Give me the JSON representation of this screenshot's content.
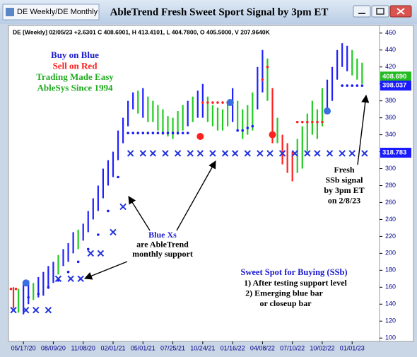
{
  "window": {
    "tab": "DE Weekly/DE Monthly"
  },
  "chart_data": {
    "type": "ohlc",
    "title": "AbleTrend Fresh Sweet Sport Signal by 3pm ET",
    "info": "DE [Weekly] 02/05/23 +2.6301 C 408.6901, H 413.4101, L 404.7800, O 405.5000, V 207.9640K",
    "xlim": [
      -6,
      143
    ],
    "xticks": [
      {
        "value": 0,
        "label": "05/17/20"
      },
      {
        "value": 12,
        "label": "08/09/20"
      },
      {
        "value": 24,
        "label": "11/08/20"
      },
      {
        "value": 36,
        "label": "02/01/21"
      },
      {
        "value": 48,
        "label": "05/01/21"
      },
      {
        "value": 60,
        "label": "07/25/21"
      },
      {
        "value": 72,
        "label": "10/24/21"
      },
      {
        "value": 84,
        "label": "01/16/22"
      },
      {
        "value": 96,
        "label": "04/08/22"
      },
      {
        "value": 108,
        "label": "07/10/22"
      },
      {
        "value": 120,
        "label": "10/02/22"
      },
      {
        "value": 132,
        "label": "01/01/23"
      }
    ],
    "ylim": [
      96,
      469
    ],
    "yticks": [
      100,
      120,
      140,
      160,
      180,
      200,
      220,
      240,
      260,
      280,
      300,
      320,
      340,
      360,
      380,
      400,
      420,
      440,
      460
    ],
    "bars": {
      "x": [
        -4,
        -2,
        0,
        2,
        4,
        6,
        8,
        10,
        12,
        14,
        16,
        18,
        20,
        22,
        24,
        26,
        28,
        30,
        32,
        34,
        36,
        38,
        40,
        42,
        44,
        46,
        48,
        50,
        52,
        54,
        56,
        58,
        60,
        62,
        64,
        66,
        68,
        70,
        72,
        74,
        76,
        78,
        80,
        82,
        84,
        86,
        88,
        90,
        92,
        94,
        96,
        98,
        100,
        102,
        104,
        106,
        108,
        110,
        112,
        114,
        116,
        118,
        120,
        122,
        124,
        126,
        128,
        130,
        132,
        134,
        136
      ],
      "low": [
        135,
        130,
        128,
        140,
        145,
        148,
        150,
        158,
        165,
        175,
        185,
        190,
        200,
        205,
        215,
        225,
        240,
        250,
        265,
        280,
        290,
        310,
        330,
        350,
        370,
        365,
        360,
        355,
        355,
        345,
        340,
        338,
        335,
        340,
        345,
        350,
        355,
        360,
        360,
        355,
        350,
        345,
        345,
        350,
        355,
        345,
        335,
        340,
        345,
        370,
        390,
        380,
        330,
        330,
        305,
        295,
        285,
        295,
        300,
        320,
        340,
        335,
        350,
        365,
        380,
        405,
        420,
        415,
        410,
        405,
        400
      ],
      "high": [
        160,
        158,
        165,
        168,
        165,
        172,
        178,
        185,
        190,
        198,
        205,
        212,
        225,
        228,
        235,
        250,
        265,
        280,
        300,
        310,
        320,
        345,
        360,
        380,
        390,
        392,
        395,
        385,
        380,
        375,
        370,
        362,
        360,
        368,
        375,
        380,
        385,
        392,
        400,
        385,
        375,
        372,
        370,
        380,
        395,
        380,
        370,
        375,
        390,
        420,
        440,
        430,
        395,
        360,
        340,
        330,
        320,
        335,
        350,
        365,
        380,
        370,
        395,
        405,
        420,
        440,
        448,
        445,
        440,
        430,
        425
      ],
      "color": [
        "#ff2020",
        "#22cc22",
        "#2020ff",
        "#2020ff",
        "#22cc22",
        "#2020ff",
        "#2020ff",
        "#2020ff",
        "#2020ff",
        "#22cc22",
        "#2020ff",
        "#2020ff",
        "#2020ff",
        "#22cc22",
        "#2020ff",
        "#2020ff",
        "#2020ff",
        "#2020ff",
        "#2020ff",
        "#2020ff",
        "#2020ff",
        "#2020ff",
        "#2020ff",
        "#2020ff",
        "#2020ff",
        "#22cc22",
        "#2020ff",
        "#22cc22",
        "#22cc22",
        "#22cc22",
        "#22cc22",
        "#22cc22",
        "#22cc22",
        "#22cc22",
        "#22cc22",
        "#2020ff",
        "#22cc22",
        "#2020ff",
        "#2020ff",
        "#22cc22",
        "#22cc22",
        "#22cc22",
        "#22cc22",
        "#22cc22",
        "#2020ff",
        "#22cc22",
        "#22cc22",
        "#22cc22",
        "#22cc22",
        "#2020ff",
        "#2020ff",
        "#22cc22",
        "#ff2020",
        "#22cc22",
        "#ff2020",
        "#ff2020",
        "#ff2020",
        "#22cc22",
        "#22cc22",
        "#22cc22",
        "#22cc22",
        "#22cc22",
        "#22cc22",
        "#2020ff",
        "#2020ff",
        "#2020ff",
        "#2020ff",
        "#2020ff",
        "#22cc22",
        "#22cc22",
        "#22cc22"
      ]
    },
    "support_dots": {
      "color": "#1a1aff",
      "x": [
        2,
        6,
        10,
        14,
        18,
        22,
        26,
        30,
        34,
        38,
        42,
        44,
        46,
        48,
        50,
        52,
        54,
        56,
        58,
        60,
        62,
        64,
        66,
        86,
        88,
        90,
        92,
        128,
        130,
        132,
        134,
        136
      ],
      "values": [
        148,
        152,
        160,
        168,
        178,
        190,
        205,
        222,
        250,
        290,
        342,
        342,
        342,
        342,
        342,
        342,
        342,
        342,
        342,
        342,
        342,
        342,
        342,
        345,
        345,
        348,
        350,
        398,
        398,
        398,
        398,
        398
      ]
    },
    "resistance_dots": {
      "color": "#ff2020",
      "x": [
        -5,
        -3,
        72,
        74,
        76,
        78,
        80,
        82,
        84,
        96,
        98,
        110,
        112,
        114,
        116,
        118,
        120
      ],
      "values": [
        158,
        158,
        378,
        378,
        378,
        378,
        378,
        378,
        378,
        405,
        420,
        355,
        355,
        355,
        355,
        355,
        355
      ]
    },
    "monthly_support": {
      "color": "#2233dd",
      "x": [
        -4,
        1,
        5,
        10,
        14,
        19,
        23,
        27,
        31,
        36,
        40,
        43,
        48,
        52,
        57,
        62,
        67,
        71,
        76,
        81,
        85,
        90,
        95,
        99,
        104,
        109,
        114,
        118,
        123,
        128,
        132,
        137
      ],
      "values": [
        133,
        133,
        133,
        133,
        170,
        170,
        170,
        200,
        200,
        225,
        255,
        318,
        318,
        318,
        318,
        318,
        318,
        318,
        318,
        318,
        318,
        318,
        318,
        318,
        318,
        318,
        318,
        318,
        318,
        318,
        318,
        318
      ]
    },
    "signals": {
      "x": [
        1,
        71,
        83,
        100,
        122
      ],
      "values": [
        165,
        338,
        378,
        340,
        368
      ],
      "color": [
        "#3a6fe0",
        "#ff2020",
        "#3a6fe0",
        "#ff2020",
        "#3a6fe0"
      ]
    },
    "price_labels": [
      {
        "value": 408.69,
        "label": "408.690",
        "color": "#22bb22"
      },
      {
        "value": 398.037,
        "label": "398.037",
        "color": "#1a1aff"
      },
      {
        "value": 318.783,
        "label": "318.783",
        "color": "#1a1aff"
      }
    ],
    "legend": [
      {
        "text": "Buy on Blue",
        "color": "#1a1acc"
      },
      {
        "text": "Sell on Red",
        "color": "#ff1a1a"
      },
      {
        "text": "Trading Made Easy",
        "color": "#22aa22"
      },
      {
        "text": "AbleSys Since 1994",
        "color": "#22aa22"
      }
    ],
    "annotations": {
      "xs": [
        "Blue Xs",
        "are AbleTrend",
        "monthly support"
      ],
      "fresh": [
        "Fresh",
        "SSb signal",
        "by 3pm ET",
        "on 2/8/23"
      ],
      "ssb_title": "Sweet Spot for Buying (SSb)",
      "ssb": [
        "1) After testing support level",
        "2) Emerging blue bar",
        "or closeup bar"
      ]
    }
  }
}
